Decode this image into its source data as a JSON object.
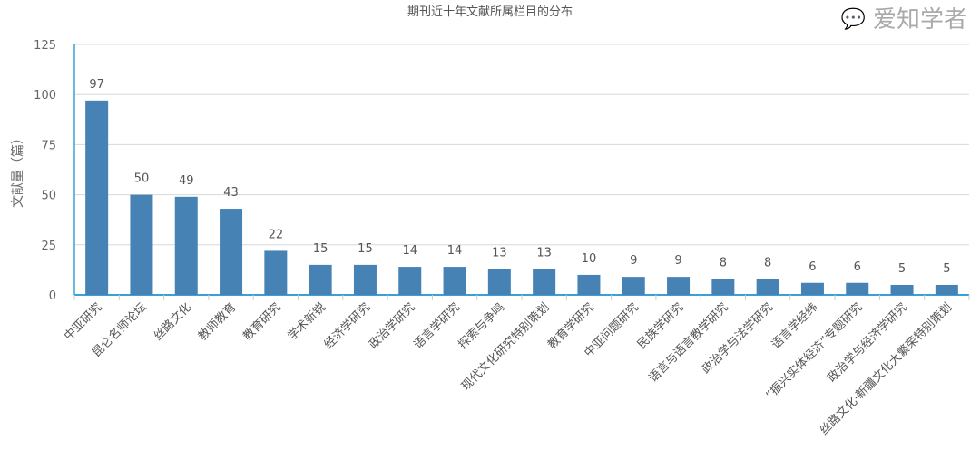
{
  "chart_data": {
    "type": "bar",
    "title": "期刊近十年文献所属栏目的分布",
    "xlabel": "",
    "ylabel": "文献量（篇）",
    "ylim": [
      0,
      125
    ],
    "yticks": [
      0,
      25,
      50,
      75,
      100,
      125
    ],
    "grid": true,
    "categories": [
      "中亚研究",
      "昆仑名师论坛",
      "丝路文化",
      "教师教育",
      "教育研究",
      "学术新锐",
      "经济学研究",
      "政治学研究",
      "语言学研究",
      "探索与争鸣",
      "现代文化研究特别策划",
      "教育学研究",
      "中亚问题研究",
      "民族学研究",
      "语言与语言教学研究",
      "政治学与法学研究",
      "语言学经纬",
      "“振兴实体经济”专题研究",
      "政治学与经济学研究",
      "丝路文化·新疆文化大繁荣特别策划"
    ],
    "values": [
      97,
      50,
      49,
      43,
      22,
      15,
      15,
      14,
      14,
      13,
      13,
      10,
      9,
      9,
      8,
      8,
      6,
      6,
      5,
      5
    ],
    "bar_color": "#4682b4",
    "axis_color": "#3aa0d8"
  },
  "watermark": "爱知学者"
}
